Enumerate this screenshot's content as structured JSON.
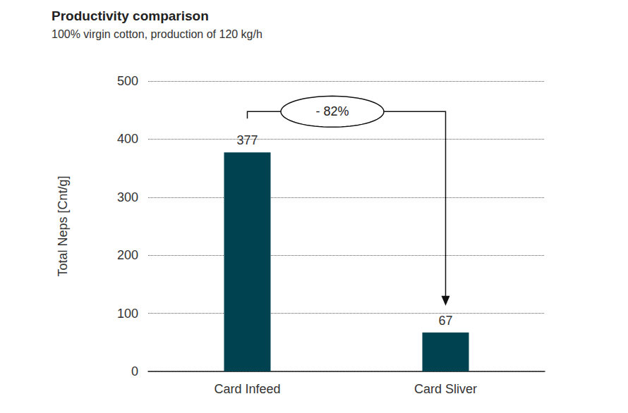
{
  "chart_data": {
    "type": "bar",
    "title": "Productivity comparison",
    "subtitle": "100% virgin cotton, production of 120 kg/h",
    "y_label": "Total Neps [Cnt/g]",
    "categories": [
      "Card Infeed",
      "Card Sliver"
    ],
    "values": [
      377,
      67
    ],
    "color": "#00424f",
    "ylim": [
      0,
      500
    ],
    "yticks": [
      0,
      100,
      200,
      300,
      400,
      500
    ],
    "grid": true,
    "data_labels": true,
    "annotation": "- 82%"
  }
}
